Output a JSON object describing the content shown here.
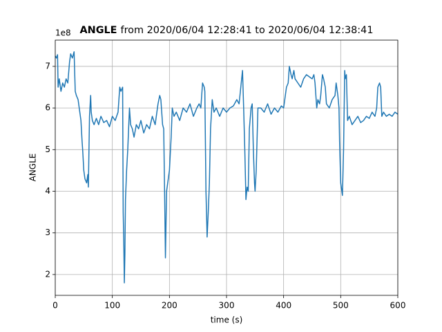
{
  "chart_data": {
    "type": "line",
    "title": {
      "bold": "ANGLE",
      "rest": "from 2020/06/04 12:28:41 to 2020/06/04 12:38:41"
    },
    "offset_label": "1e8",
    "x_label": "time (s)",
    "y_label": "ANGLE",
    "xlim": [
      0,
      600
    ],
    "xticks": [
      0,
      100,
      200,
      300,
      400,
      500,
      600
    ],
    "ylim": [
      1.5,
      7.63
    ],
    "yticks": [
      2,
      3,
      4,
      5,
      6,
      7
    ],
    "grid": true,
    "series": [
      {
        "name": "ANGLE",
        "color": "#1f77b4",
        "x": [
          0,
          2,
          4,
          5,
          7,
          10,
          13,
          16,
          19,
          22,
          25,
          27,
          30,
          33,
          35,
          37,
          40,
          42,
          45,
          47,
          48,
          50,
          52,
          55,
          57,
          58,
          60,
          62,
          63,
          65,
          68,
          72,
          76,
          80,
          85,
          90,
          95,
          100,
          105,
          110,
          113,
          115,
          118,
          119,
          120,
          121,
          122,
          123,
          125,
          127,
          130,
          132,
          135,
          138,
          142,
          146,
          150,
          155,
          160,
          165,
          170,
          175,
          178,
          180,
          183,
          185,
          188,
          190,
          192,
          193,
          195,
          198,
          200,
          203,
          205,
          208,
          212,
          218,
          224,
          230,
          236,
          242,
          248,
          252,
          255,
          258,
          261,
          262,
          264,
          266,
          268,
          270,
          272,
          275,
          278,
          282,
          288,
          294,
          300,
          306,
          312,
          318,
          322,
          325,
          328,
          330,
          332,
          334,
          336,
          338,
          340,
          343,
          345,
          347,
          349,
          350,
          352,
          355,
          360,
          366,
          372,
          378,
          384,
          390,
          396,
          400,
          403,
          405,
          408,
          410,
          413,
          415,
          418,
          420,
          425,
          430,
          435,
          440,
          445,
          450,
          453,
          455,
          458,
          460,
          463,
          465,
          468,
          470,
          473,
          475,
          480,
          485,
          490,
          492,
          495,
          497,
          498,
          500,
          502,
          503,
          505,
          507,
          508,
          510,
          512,
          515,
          520,
          525,
          530,
          535,
          540,
          545,
          550,
          555,
          560,
          563,
          565,
          568,
          570,
          572,
          575,
          580,
          585,
          590,
          595,
          600
        ],
        "values": [
          7.25,
          7.2,
          7.28,
          6.5,
          6.7,
          6.4,
          6.6,
          6.5,
          6.7,
          6.6,
          7.1,
          7.3,
          7.2,
          7.35,
          6.4,
          6.3,
          6.2,
          6.0,
          5.7,
          5.2,
          5.0,
          4.5,
          4.3,
          4.2,
          4.4,
          4.1,
          5.8,
          6.3,
          5.9,
          5.7,
          5.6,
          5.75,
          5.6,
          5.8,
          5.65,
          5.7,
          5.55,
          5.8,
          5.7,
          5.9,
          6.5,
          6.4,
          6.5,
          3.5,
          2.8,
          1.8,
          2.5,
          3.8,
          4.5,
          5.0,
          6.0,
          5.6,
          5.5,
          5.3,
          5.6,
          5.5,
          5.7,
          5.4,
          5.6,
          5.5,
          5.8,
          5.6,
          5.9,
          6.1,
          6.3,
          6.2,
          5.6,
          5.5,
          3.5,
          2.4,
          4.0,
          4.3,
          4.5,
          5.3,
          6.0,
          5.8,
          5.9,
          5.7,
          6.0,
          5.9,
          6.1,
          5.8,
          6.0,
          6.1,
          6.0,
          6.6,
          6.5,
          6.4,
          4.0,
          2.9,
          3.5,
          4.2,
          5.5,
          6.2,
          5.9,
          6.0,
          5.8,
          6.0,
          5.9,
          6.0,
          6.05,
          6.2,
          6.1,
          6.5,
          6.9,
          6.0,
          5.0,
          3.8,
          4.1,
          4.0,
          5.5,
          6.0,
          6.1,
          5.0,
          4.2,
          4.0,
          4.5,
          6.0,
          6.0,
          5.9,
          6.1,
          5.85,
          6.0,
          5.9,
          6.05,
          6.0,
          6.3,
          6.5,
          6.6,
          7.0,
          6.8,
          6.7,
          6.9,
          6.7,
          6.6,
          6.5,
          6.7,
          6.8,
          6.75,
          6.7,
          6.8,
          6.6,
          6.0,
          6.2,
          6.1,
          6.3,
          6.8,
          6.7,
          6.5,
          6.1,
          6.0,
          6.2,
          6.3,
          6.6,
          6.3,
          6.0,
          5.2,
          4.2,
          4.0,
          3.9,
          5.0,
          6.9,
          6.7,
          6.8,
          5.7,
          5.8,
          5.6,
          5.7,
          5.8,
          5.65,
          5.7,
          5.8,
          5.75,
          5.9,
          5.8,
          6.0,
          6.5,
          6.6,
          6.5,
          5.8,
          5.9,
          5.8,
          5.85,
          5.8,
          5.9,
          5.85
        ]
      }
    ]
  }
}
